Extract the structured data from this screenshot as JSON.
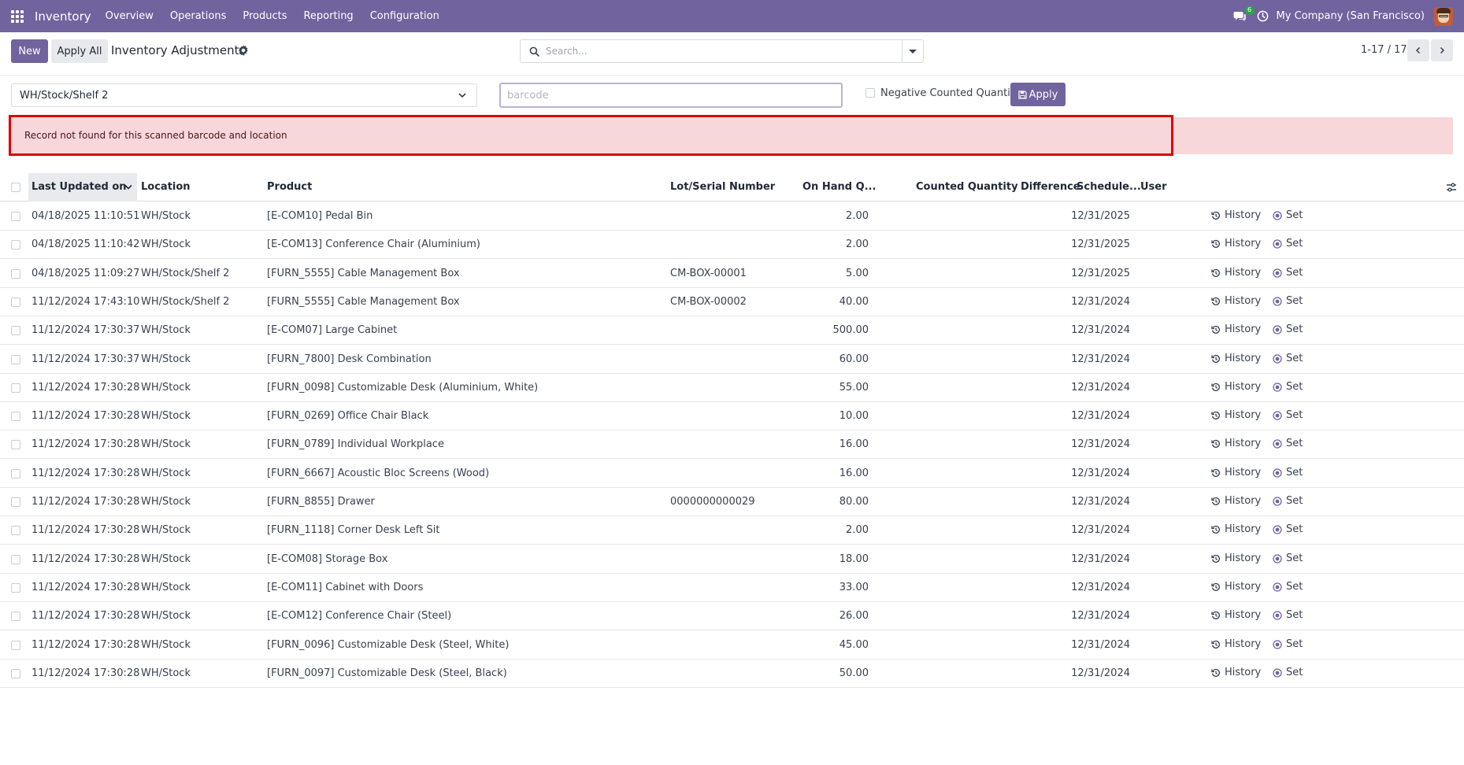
{
  "navbar": {
    "app_name": "Inventory",
    "menu": [
      "Overview",
      "Operations",
      "Products",
      "Reporting",
      "Configuration"
    ],
    "chat_count": "6",
    "company": "My Company (San Francisco)"
  },
  "control_panel": {
    "new_label": "New",
    "apply_all_label": "Apply All",
    "title": "Inventory Adjustments",
    "search_placeholder": "Search...",
    "pager": "1-17 / 17"
  },
  "barcode_bar": {
    "location": "WH/Stock/Shelf 2",
    "barcode_placeholder": "barcode",
    "negative_label": "Negative Counted Quantity?",
    "apply_label": "Apply"
  },
  "alert": {
    "message": "Record not found for this scanned barcode and location"
  },
  "table": {
    "headers": {
      "last_updated": "Last Updated on",
      "location": "Location",
      "product": "Product",
      "lot": "Lot/Serial Number",
      "on_hand": "On Hand Q...",
      "counted": "Counted Quantity",
      "difference": "Difference",
      "scheduled": "Schedule...",
      "user": "User"
    },
    "history_label": "History",
    "set_label": "Set",
    "rows": [
      {
        "date": "04/18/2025 11:10:51",
        "location": "WH/Stock",
        "product": "[E-COM10] Pedal Bin",
        "lot": "",
        "on_hand": "2.00",
        "scheduled": "12/31/2025"
      },
      {
        "date": "04/18/2025 11:10:42",
        "location": "WH/Stock",
        "product": "[E-COM13] Conference Chair (Aluminium)",
        "lot": "",
        "on_hand": "2.00",
        "scheduled": "12/31/2025"
      },
      {
        "date": "04/18/2025 11:09:27",
        "location": "WH/Stock/Shelf 2",
        "product": "[FURN_5555] Cable Management Box",
        "lot": "CM-BOX-00001",
        "on_hand": "5.00",
        "scheduled": "12/31/2025"
      },
      {
        "date": "11/12/2024 17:43:10",
        "location": "WH/Stock/Shelf 2",
        "product": "[FURN_5555] Cable Management Box",
        "lot": "CM-BOX-00002",
        "on_hand": "40.00",
        "scheduled": "12/31/2024"
      },
      {
        "date": "11/12/2024 17:30:37",
        "location": "WH/Stock",
        "product": "[E-COM07] Large Cabinet",
        "lot": "",
        "on_hand": "500.00",
        "scheduled": "12/31/2024"
      },
      {
        "date": "11/12/2024 17:30:37",
        "location": "WH/Stock",
        "product": "[FURN_7800] Desk Combination",
        "lot": "",
        "on_hand": "60.00",
        "scheduled": "12/31/2024"
      },
      {
        "date": "11/12/2024 17:30:28",
        "location": "WH/Stock",
        "product": "[FURN_0098] Customizable Desk (Aluminium, White)",
        "lot": "",
        "on_hand": "55.00",
        "scheduled": "12/31/2024"
      },
      {
        "date": "11/12/2024 17:30:28",
        "location": "WH/Stock",
        "product": "[FURN_0269] Office Chair Black",
        "lot": "",
        "on_hand": "10.00",
        "scheduled": "12/31/2024"
      },
      {
        "date": "11/12/2024 17:30:28",
        "location": "WH/Stock",
        "product": "[FURN_0789] Individual Workplace",
        "lot": "",
        "on_hand": "16.00",
        "scheduled": "12/31/2024"
      },
      {
        "date": "11/12/2024 17:30:28",
        "location": "WH/Stock",
        "product": "[FURN_6667] Acoustic Bloc Screens (Wood)",
        "lot": "",
        "on_hand": "16.00",
        "scheduled": "12/31/2024"
      },
      {
        "date": "11/12/2024 17:30:28",
        "location": "WH/Stock",
        "product": "[FURN_8855] Drawer",
        "lot": "0000000000029",
        "on_hand": "80.00",
        "scheduled": "12/31/2024"
      },
      {
        "date": "11/12/2024 17:30:28",
        "location": "WH/Stock",
        "product": "[FURN_1118] Corner Desk Left Sit",
        "lot": "",
        "on_hand": "2.00",
        "scheduled": "12/31/2024"
      },
      {
        "date": "11/12/2024 17:30:28",
        "location": "WH/Stock",
        "product": "[E-COM08] Storage Box",
        "lot": "",
        "on_hand": "18.00",
        "scheduled": "12/31/2024"
      },
      {
        "date": "11/12/2024 17:30:28",
        "location": "WH/Stock",
        "product": "[E-COM11] Cabinet with Doors",
        "lot": "",
        "on_hand": "33.00",
        "scheduled": "12/31/2024"
      },
      {
        "date": "11/12/2024 17:30:28",
        "location": "WH/Stock",
        "product": "[E-COM12] Conference Chair (Steel)",
        "lot": "",
        "on_hand": "26.00",
        "scheduled": "12/31/2024"
      },
      {
        "date": "11/12/2024 17:30:28",
        "location": "WH/Stock",
        "product": "[FURN_0096] Customizable Desk (Steel, White)",
        "lot": "",
        "on_hand": "45.00",
        "scheduled": "12/31/2024"
      },
      {
        "date": "11/12/2024 17:30:28",
        "location": "WH/Stock",
        "product": "[FURN_0097] Customizable Desk (Steel, Black)",
        "lot": "",
        "on_hand": "50.00",
        "scheduled": "12/31/2024"
      }
    ]
  },
  "colors": {
    "brand": "#71639e",
    "alert_bg": "#f7d7da",
    "highlight_outline": "#e00000"
  }
}
